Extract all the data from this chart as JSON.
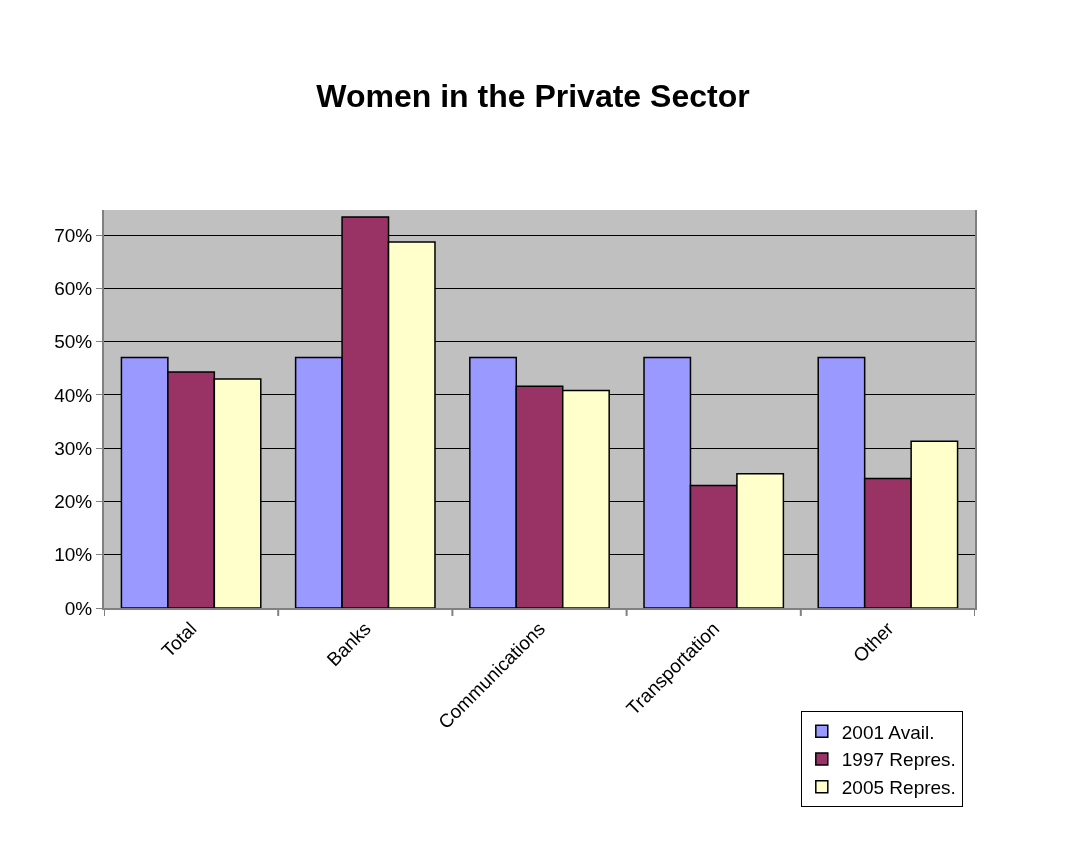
{
  "chart_data": {
    "type": "bar",
    "title": "Women in the Private Sector",
    "categories": [
      "Total",
      "Banks",
      "Communications",
      "Transportation",
      "Other"
    ],
    "series": [
      {
        "name": "2001 Avail.",
        "color": "#9999ff",
        "values": [
          47,
          47,
          47,
          47,
          47
        ]
      },
      {
        "name": "1997 Repres.",
        "color": "#993366",
        "values": [
          44.3,
          73.4,
          41.6,
          23,
          24.3
        ]
      },
      {
        "name": "2005 Repres.",
        "color": "#ffffcc",
        "values": [
          43,
          68.7,
          40.8,
          25.2,
          31.3
        ]
      }
    ],
    "ylim": [
      0,
      74.7
    ],
    "yticks": [
      {
        "value": 0,
        "label": "0%"
      },
      {
        "value": 10,
        "label": "10%"
      },
      {
        "value": 20,
        "label": "20%"
      },
      {
        "value": 30,
        "label": "30%"
      },
      {
        "value": 40,
        "label": "40%"
      },
      {
        "value": 50,
        "label": "50%"
      },
      {
        "value": 60,
        "label": "60%"
      },
      {
        "value": 70,
        "label": "70%"
      }
    ],
    "grid": "y",
    "legend": "bottom right"
  }
}
